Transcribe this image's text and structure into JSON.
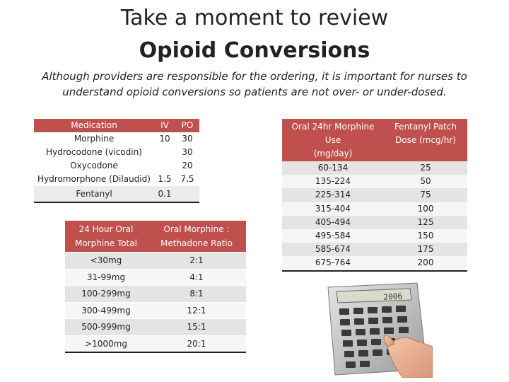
{
  "header": {
    "title_line1": "Take a moment to review",
    "title_line2": "Opioid Conversions",
    "subtitle": "Although providers are responsible for the ordering, it is important for nurses to understand  opioid conversions so patients are not over- or under-dosed."
  },
  "medication_table": {
    "headers": {
      "medication": "Medication",
      "iv": "IV",
      "po": "PO"
    },
    "rows": [
      {
        "name": "Morphine",
        "iv": "10",
        "po": "30"
      },
      {
        "name": "Hydrocodone (vicodin)",
        "iv": "",
        "po": "30"
      },
      {
        "name": "Oxycodone",
        "iv": "",
        "po": "20"
      },
      {
        "name": "Hydromorphone (Dilaudid)",
        "iv": "1.5",
        "po": "7.5"
      },
      {
        "name": "Fentanyl",
        "iv": "0.1",
        "po": ""
      }
    ]
  },
  "methadone_table": {
    "headers": {
      "total": "24 Hour Oral Morphine Total",
      "ratio": "Oral Morphine : Methadone Ratio"
    },
    "rows": [
      {
        "total": "<30mg",
        "ratio": "2:1"
      },
      {
        "total": "31-99mg",
        "ratio": "4:1"
      },
      {
        "total": "100-299mg",
        "ratio": "8:1"
      },
      {
        "total": "300-499mg",
        "ratio": "12:1"
      },
      {
        "total": "500-999mg",
        "ratio": "15:1"
      },
      {
        "total": ">1000mg",
        "ratio": "20:1"
      }
    ]
  },
  "fentanyl_table": {
    "headers": {
      "morphine_line1": "Oral 24hr Morphine",
      "morphine_line2": "Use",
      "morphine_line3": "(mg/day)",
      "patch_line1": "Fentanyl Patch",
      "patch_line2": "Dose (mcg/hr)"
    },
    "rows": [
      {
        "morphine": "60-134",
        "patch": "25"
      },
      {
        "morphine": "135-224",
        "patch": "50"
      },
      {
        "morphine": "225-314",
        "patch": "75"
      },
      {
        "morphine": "315-404",
        "patch": "100"
      },
      {
        "morphine": "405-494",
        "patch": "125"
      },
      {
        "morphine": "495-584",
        "patch": "150"
      },
      {
        "morphine": "585-674",
        "patch": "175"
      },
      {
        "morphine": "675-764",
        "patch": "200"
      }
    ]
  },
  "calculator": {
    "display": "2006"
  },
  "colors": {
    "header_red": "#c0504d",
    "row_light": "#f6f6f6",
    "row_dark": "#e4e4e4"
  }
}
